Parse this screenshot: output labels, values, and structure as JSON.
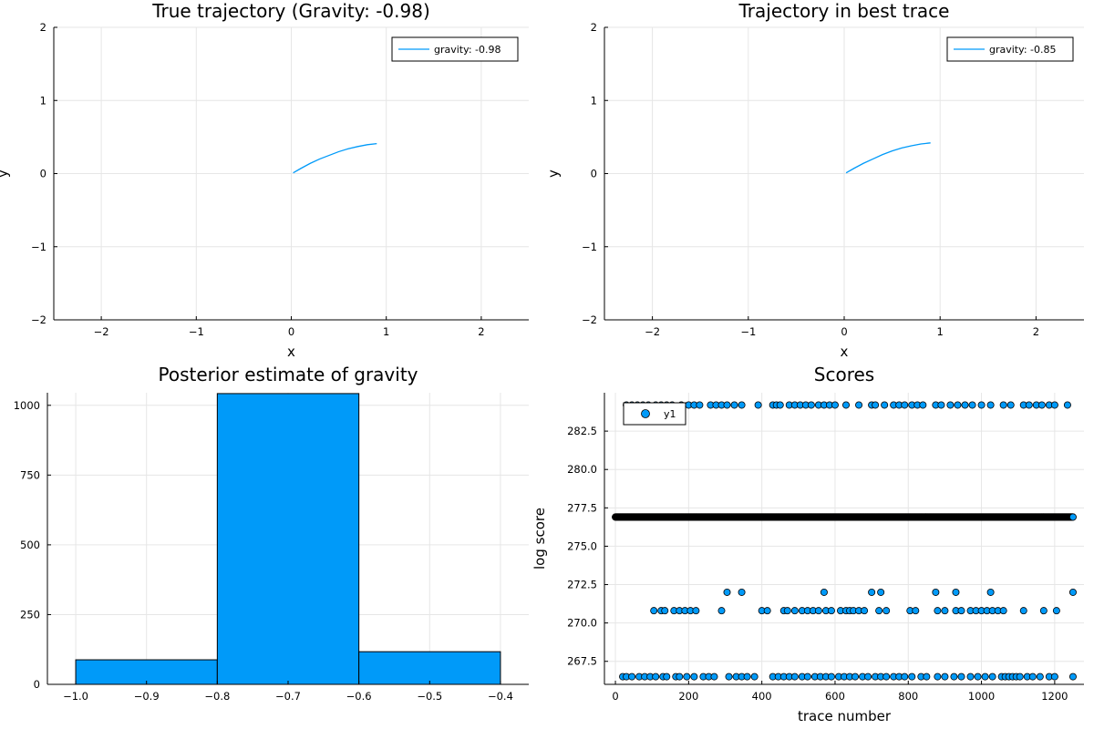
{
  "chart_data": [
    {
      "type": "line",
      "title": "True trajectory (Gravity: -0.98)",
      "xlabel": "x",
      "ylabel": "y",
      "xlim": [
        -2.5,
        2.5
      ],
      "ylim": [
        -2,
        2
      ],
      "xticks": [
        -2,
        -1,
        0,
        1,
        2
      ],
      "yticks": [
        -2,
        -1,
        0,
        1,
        2
      ],
      "grid": true,
      "legend_position": "top-right",
      "series": [
        {
          "name": "gravity: -0.98",
          "color": "#009af9",
          "x": [
            0.02,
            0.1,
            0.2,
            0.3,
            0.4,
            0.5,
            0.6,
            0.7,
            0.8,
            0.9
          ],
          "y": [
            0.01,
            0.07,
            0.14,
            0.2,
            0.25,
            0.3,
            0.34,
            0.37,
            0.395,
            0.41
          ]
        }
      ]
    },
    {
      "type": "line",
      "title": "Trajectory in best trace",
      "xlabel": "x",
      "ylabel": "y",
      "xlim": [
        -2.5,
        2.5
      ],
      "ylim": [
        -2,
        2
      ],
      "xticks": [
        -2,
        -1,
        0,
        1,
        2
      ],
      "yticks": [
        -2,
        -1,
        0,
        1,
        2
      ],
      "grid": true,
      "legend_position": "top-right",
      "series": [
        {
          "name": "gravity: -0.85",
          "color": "#009af9",
          "x": [
            0.02,
            0.1,
            0.2,
            0.3,
            0.4,
            0.5,
            0.6,
            0.7,
            0.8,
            0.9
          ],
          "y": [
            0.01,
            0.07,
            0.14,
            0.2,
            0.26,
            0.31,
            0.35,
            0.38,
            0.405,
            0.42
          ]
        }
      ]
    },
    {
      "type": "bar",
      "title": "Posterior estimate of gravity",
      "xlabel": "",
      "ylabel": "",
      "xlim": [
        -1.04,
        -0.36
      ],
      "ylim": [
        0,
        1045
      ],
      "xticks": [
        -1.0,
        -0.9,
        -0.8,
        -0.7,
        -0.6,
        -0.5,
        -0.4
      ],
      "yticks": [
        0,
        250,
        500,
        750,
        1000
      ],
      "grid": true,
      "color": "#009af9",
      "bins": [
        {
          "from": -1.0,
          "to": -0.8,
          "count": 88
        },
        {
          "from": -0.8,
          "to": -0.6,
          "count": 1042
        },
        {
          "from": -0.6,
          "to": -0.4,
          "count": 117
        }
      ]
    },
    {
      "type": "scatter",
      "title": "Scores",
      "xlabel": "trace number",
      "ylabel": "log score",
      "xlim": [
        -30,
        1280
      ],
      "ylim": [
        266.0,
        285.0
      ],
      "xticks": [
        0,
        200,
        400,
        600,
        800,
        1000,
        1200
      ],
      "yticks": [
        267.5,
        270.0,
        272.5,
        275.0,
        277.5,
        280.0,
        282.5
      ],
      "grid": true,
      "legend_position": "top-left",
      "series": [
        {
          "name": "y1",
          "color": "#009af9",
          "levels": [
            {
              "y": 284.2,
              "x": [
                30,
                45,
                60,
                75,
                90,
                110,
                125,
                140,
                155,
                180,
                200,
                215,
                230,
                260,
                275,
                290,
                305,
                325,
                345,
                390,
                430,
                440,
                450,
                475,
                490,
                505,
                520,
                535,
                555,
                570,
                585,
                600,
                630,
                665,
                700,
                710,
                735,
                760,
                775,
                790,
                810,
                825,
                840,
                875,
                890,
                915,
                935,
                955,
                975,
                1000,
                1025,
                1060,
                1080,
                1115,
                1130,
                1150,
                1165,
                1185,
                1200,
                1235
              ]
            },
            {
              "y": 276.9,
              "x_range": [
                0,
                1250
              ],
              "step": 1
            },
            {
              "y": 272.0,
              "x": [
                305,
                345,
                570,
                700,
                725,
                875,
                930,
                1025,
                1250
              ]
            },
            {
              "y": 270.8,
              "x": [
                105,
                125,
                135,
                160,
                175,
                190,
                205,
                220,
                290,
                400,
                415,
                460,
                470,
                490,
                510,
                525,
                540,
                555,
                575,
                590,
                615,
                630,
                640,
                650,
                665,
                680,
                720,
                740,
                805,
                820,
                880,
                900,
                930,
                945,
                970,
                985,
                1000,
                1015,
                1030,
                1045,
                1060,
                1115,
                1170,
                1205
              ]
            },
            {
              "y": 266.5,
              "x": [
                20,
                30,
                45,
                65,
                80,
                95,
                110,
                130,
                140,
                165,
                175,
                195,
                215,
                240,
                255,
                270,
                310,
                330,
                345,
                360,
                380,
                430,
                445,
                460,
                475,
                490,
                510,
                525,
                545,
                560,
                575,
                590,
                610,
                625,
                640,
                655,
                675,
                690,
                710,
                725,
                740,
                760,
                775,
                790,
                810,
                835,
                850,
                880,
                900,
                925,
                945,
                970,
                990,
                1010,
                1030,
                1055,
                1065,
                1075,
                1085,
                1095,
                1105,
                1125,
                1140,
                1160,
                1185,
                1200,
                1250
              ]
            }
          ]
        }
      ]
    }
  ]
}
